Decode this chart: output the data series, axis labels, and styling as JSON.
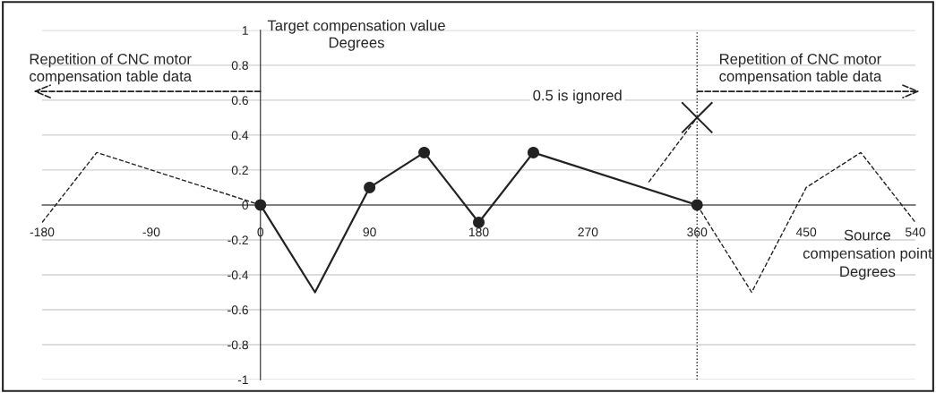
{
  "chart_data": {
    "type": "line",
    "ylabel": "Target compensation value\nDegrees",
    "xlabel": "Source\ncompensation point\nDegrees",
    "xlim": [
      -180,
      540
    ],
    "xticks": [
      -180,
      -90,
      0,
      90,
      180,
      270,
      360,
      450,
      540
    ],
    "ylim": [
      -1,
      1
    ],
    "yticks": [
      -1,
      -0.8,
      -0.6,
      -0.4,
      -0.2,
      0,
      0.2,
      0.4,
      0.6,
      0.8,
      1
    ],
    "grid": "y",
    "legend": false,
    "series": [
      {
        "color": "#222222",
        "line_style": "solid",
        "x": [
          0,
          45,
          90,
          135,
          180,
          225,
          360
        ],
        "values": [
          0,
          -0.5,
          0.1,
          0.3,
          -0.1,
          0.3,
          0
        ]
      },
      {
        "type": "scatter",
        "color": "#222222",
        "marker": "circle",
        "x": [
          0,
          90,
          135,
          180,
          225,
          360
        ],
        "values": [
          0,
          0.1,
          0.3,
          -0.1,
          0.3,
          0
        ]
      },
      {
        "color": "#222222",
        "line_style": "dashed",
        "x": [
          -180,
          -135,
          0
        ],
        "values": [
          -0.1,
          0.3,
          0
        ]
      },
      {
        "color": "#222222",
        "line_style": "dashed",
        "x": [
          360,
          405,
          450,
          495,
          540
        ],
        "values": [
          0,
          -0.5,
          0.1,
          0.3,
          -0.1
        ]
      },
      {
        "color": "#222222",
        "line_style": "dashed",
        "x": [
          320,
          360
        ],
        "values": [
          0.13,
          0.5
        ]
      },
      {
        "type": "scatter",
        "color": "#222222",
        "marker": "cross",
        "x": [
          360
        ],
        "values": [
          0.5
        ]
      }
    ],
    "ref_lines": [
      {
        "axis": "x",
        "value": 360,
        "line_style": "dotted",
        "color": "#222222"
      }
    ],
    "annotations": [
      "Repetition of CNC motor\ncompensation table data",
      "Repetition of CNC motor\ncompensation table data",
      "0.5 is ignored"
    ]
  }
}
